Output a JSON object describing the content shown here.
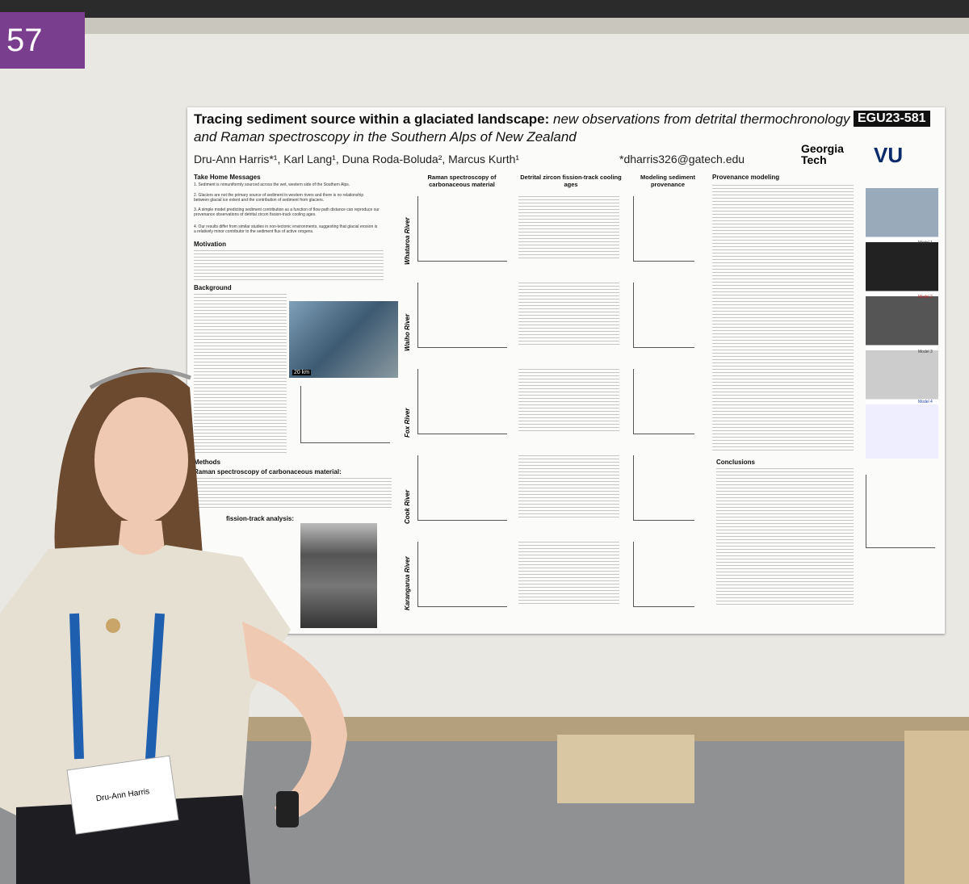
{
  "booth_number": "57",
  "poster": {
    "title": "Tracing sediment source within a glaciated landscape:",
    "title_italic": "new observations from detrital thermochronology and Raman spectroscopy in the Southern Alps of New Zealand",
    "id": "EGU23-581",
    "authors": "Dru-Ann Harris*¹, Karl Lang¹, Duna Roda-Boluda², Marcus Kurth¹",
    "email": "*dharris326@gatech.edu",
    "logos": [
      "Georgia Tech",
      "VU"
    ],
    "left_sections": [
      "Take Home Messages",
      "Motivation",
      "Background",
      "Methods"
    ],
    "take_home": [
      "1. Sediment is nonuniformly sourced across the wet, western side of the Southern Alps.",
      "2. Glaciers are not the primary source of sediment in western rivers and there is no relationship between glacial ice extent and the contribution of sediment from glaciers.",
      "3. A simple model predicting sediment contribution as a function of flow path distance can reproduce our provenance observations of detrital zircon fission-track cooling ages.",
      "4. Our results differ from similar studies in non-tectonic environments, suggesting that glacial erosion is a relatively minor contributor to the sediment flux of active orogens."
    ],
    "methods_headings": [
      "Raman spectroscopy of carbonaceous material:",
      "fission-track analysis:"
    ],
    "columns": [
      "Raman spectroscopy of carbonaceous material",
      "Detrital zircon fission-track cooling ages",
      "Modeling sediment provenance",
      "Provenance modeling"
    ],
    "rivers": [
      "Whataroa River",
      "Waiho River",
      "Fox River",
      "Cook River",
      "Karangarua River"
    ],
    "models": [
      "Model 1",
      "Model 2",
      "Model 3",
      "Model 4"
    ],
    "conclusions": "Conclusions",
    "scale": "20 km"
  },
  "badge": {
    "name": "Dru-Ann Harris"
  }
}
